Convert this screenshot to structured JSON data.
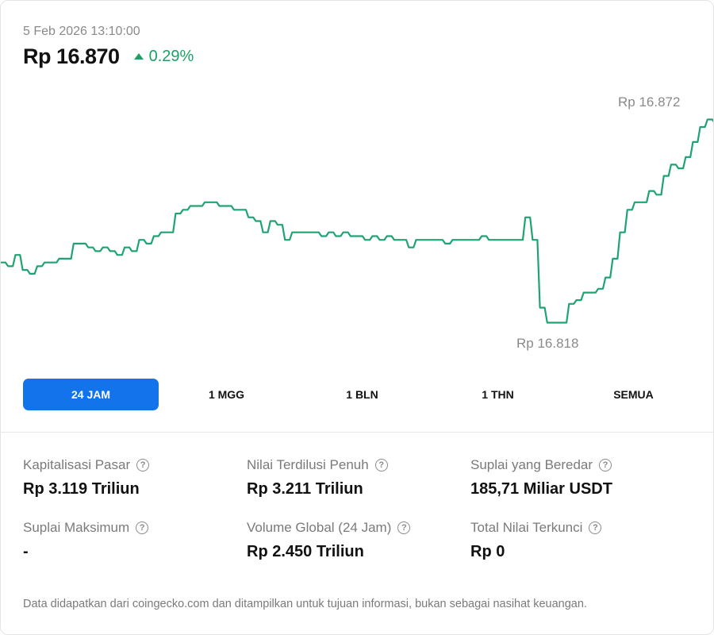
{
  "header": {
    "timestamp": "5 Feb 2026 13:10:00",
    "price": "Rp 16.870",
    "change": "0.29%"
  },
  "colors": {
    "accent": "#1273ea",
    "positive": "#1aa266",
    "line": "#20a372"
  },
  "icons": {
    "change": "triangle-up-icon",
    "help": "question-circle-icon"
  },
  "chart_data": {
    "type": "line",
    "title": "",
    "xlabel": "",
    "ylabel": "",
    "high_label": "Rp 16.872",
    "low_label": "Rp 16.818",
    "ylim": [
      16.816,
      16.874
    ],
    "series": [
      {
        "values": [
          16.834,
          16.833,
          16.836,
          16.832,
          16.831,
          16.833,
          16.834,
          16.834,
          16.835,
          16.835,
          16.839,
          16.839,
          16.838,
          16.837,
          16.838,
          16.837,
          16.836,
          16.838,
          16.837,
          16.84,
          16.839,
          16.841,
          16.842,
          16.842,
          16.847,
          16.848,
          16.849,
          16.849,
          16.85,
          16.85,
          16.849,
          16.849,
          16.848,
          16.848,
          16.846,
          16.845,
          16.842,
          16.845,
          16.844,
          16.84,
          16.842,
          16.842,
          16.842,
          16.842,
          16.841,
          16.842,
          16.841,
          16.842,
          16.841,
          16.841,
          16.84,
          16.841,
          16.84,
          16.841,
          16.84,
          16.84,
          16.838,
          16.84,
          16.84,
          16.84,
          16.84,
          16.839,
          16.84,
          16.84,
          16.84,
          16.84,
          16.841,
          16.84,
          16.84,
          16.84,
          16.84,
          16.84,
          16.846,
          16.84,
          16.822,
          16.818,
          16.818,
          16.818,
          16.823,
          16.824,
          16.826,
          16.826,
          16.827,
          16.83,
          16.835,
          16.842,
          16.848,
          16.85,
          16.85,
          16.853,
          16.852,
          16.857,
          16.86,
          16.859,
          16.862,
          16.866,
          16.87,
          16.872,
          16.871
        ]
      }
    ]
  },
  "periods": [
    "24 JAM",
    "1 MGG",
    "1 BLN",
    "1 THN",
    "SEMUA"
  ],
  "stats": [
    {
      "label": "Kapitalisasi Pasar",
      "value": "Rp 3.119 Triliun"
    },
    {
      "label": "Nilai Terdilusi Penuh",
      "value": "Rp 3.211 Triliun"
    },
    {
      "label": "Suplai yang Beredar",
      "value": "185,71 Miliar USDT"
    },
    {
      "label": "Suplai Maksimum",
      "value": "-"
    },
    {
      "label": "Volume Global (24 Jam)",
      "value": "Rp 2.450 Triliun"
    },
    {
      "label": "Total Nilai Terkunci",
      "value": "Rp 0"
    }
  ],
  "footer": {
    "disclaimer": "Data didapatkan dari coingecko.com dan ditampilkan untuk tujuan informasi, bukan sebagai nasihat keuangan."
  }
}
